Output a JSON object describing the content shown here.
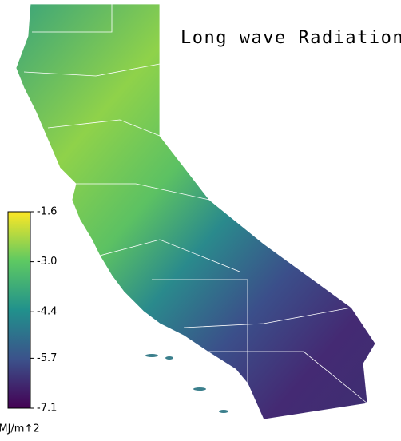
{
  "title": "Long wave Radiation",
  "colorbar": {
    "colormap": "viridis",
    "lim": [
      -7.1,
      -1.6
    ],
    "ticks": [
      -1.6,
      {
        "value": -3,
        "label": "-3.0"
      },
      -4.4,
      -5.7,
      -7.1
    ],
    "unit": "MJ/m↑2"
  }
}
